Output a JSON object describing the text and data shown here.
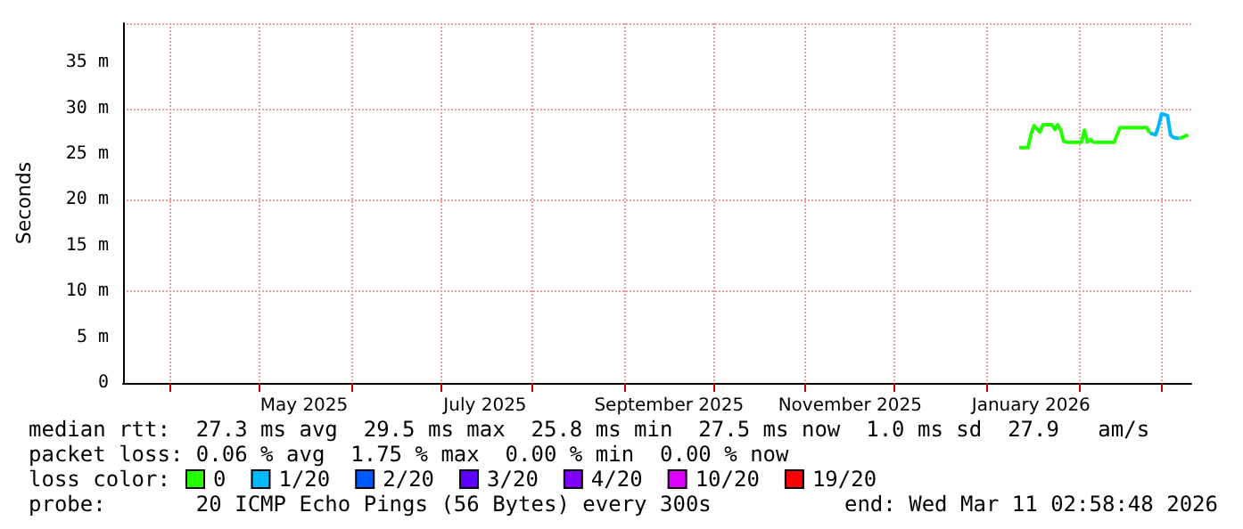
{
  "chart_data": {
    "type": "line",
    "ylabel": "Seconds",
    "legend_title": "loss color:",
    "legend": "bottom",
    "grid": true,
    "xlim": [
      "2025-03-16",
      "2026-03-11"
    ],
    "xticks": [
      {
        "value": "2025-04-01",
        "label": null
      },
      {
        "value": "2025-05-01",
        "label": null
      },
      {
        "value": "2025-05-16",
        "label": "May 2025"
      },
      {
        "value": "2025-06-01",
        "label": null
      },
      {
        "value": "2025-07-01",
        "label": null
      },
      {
        "value": "2025-07-16",
        "label": "July 2025"
      },
      {
        "value": "2025-08-01",
        "label": null
      },
      {
        "value": "2025-09-01",
        "label": null
      },
      {
        "value": "2025-09-16",
        "label": "September 2025"
      },
      {
        "value": "2025-10-01",
        "label": null
      },
      {
        "value": "2025-11-01",
        "label": null
      },
      {
        "value": "2025-11-16",
        "label": "November 2025"
      },
      {
        "value": "2025-12-01",
        "label": null
      },
      {
        "value": "2026-01-01",
        "label": null
      },
      {
        "value": "2026-01-16",
        "label": "January 2026"
      },
      {
        "value": "2026-02-01",
        "label": null
      },
      {
        "value": "2026-03-01",
        "label": null
      }
    ],
    "ylim": [
      0,
      39.3
    ],
    "yticks": [
      0,
      {
        "value": 5,
        "label": "5 m"
      },
      {
        "value": 10,
        "label": "10 m"
      },
      {
        "value": 15,
        "label": "15 m"
      },
      {
        "value": 20,
        "label": "20 m"
      },
      {
        "value": 25,
        "label": "25 m"
      },
      {
        "value": 30,
        "label": "30 m"
      },
      {
        "value": 35,
        "label": "35 m"
      }
    ],
    "x": [
      "2026-01-12",
      "2026-01-15",
      "2026-01-16",
      "2026-01-17",
      "2026-01-19",
      "2026-01-20",
      "2026-01-23",
      "2026-01-24",
      "2026-01-25",
      "2026-01-26",
      "2026-01-27",
      "2026-01-28",
      "2026-02-02",
      "2026-02-03",
      "2026-02-04",
      "2026-02-05",
      "2026-02-06",
      "2026-02-13",
      "2026-02-14",
      "2026-02-15",
      "2026-02-24",
      "2026-02-25",
      "2026-02-27",
      "2026-02-28",
      "2026-03-01",
      "2026-03-03",
      "2026-03-04",
      "2026-03-05",
      "2026-03-07",
      "2026-03-10"
    ],
    "series": [
      {
        "name": "0",
        "color": "#26ff00",
        "values": [
          25.7,
          25.7,
          27.2,
          28.1,
          27.4,
          28.2,
          28.2,
          27.7,
          28.2,
          27.6,
          26.4,
          26.3,
          26.3,
          27.6,
          26.3,
          26.6,
          26.3,
          26.3,
          27.1,
          27.9,
          27.9,
          27.3,
          null,
          null,
          null,
          null,
          null,
          null,
          26.7,
          27.1
        ]
      },
      {
        "name": "1/20",
        "color": "#00b8ff",
        "values": [
          null,
          null,
          null,
          null,
          null,
          null,
          null,
          null,
          null,
          null,
          null,
          null,
          null,
          null,
          null,
          null,
          null,
          null,
          null,
          null,
          null,
          27.3,
          27.1,
          28.1,
          29.4,
          29.2,
          27.1,
          26.8,
          26.7,
          null
        ]
      },
      {
        "name": "2/20",
        "color": "#0059ff",
        "values": [
          null,
          null,
          null,
          null,
          null,
          null,
          null,
          null,
          null,
          null,
          null,
          null,
          null,
          null,
          null,
          null,
          null,
          null,
          null,
          null,
          null,
          null,
          null,
          null,
          null,
          null,
          null,
          null,
          null,
          null
        ]
      },
      {
        "name": "3/20",
        "color": "#5e00ff",
        "values": [
          null,
          null,
          null,
          null,
          null,
          null,
          null,
          null,
          null,
          null,
          null,
          null,
          null,
          null,
          null,
          null,
          null,
          null,
          null,
          null,
          null,
          null,
          null,
          null,
          null,
          null,
          null,
          null,
          null,
          null
        ]
      },
      {
        "name": "4/20",
        "color": "#7e00ff",
        "values": [
          null,
          null,
          null,
          null,
          null,
          null,
          null,
          null,
          null,
          null,
          null,
          null,
          null,
          null,
          null,
          null,
          null,
          null,
          null,
          null,
          null,
          null,
          null,
          null,
          null,
          null,
          null,
          null,
          null,
          null
        ]
      },
      {
        "name": "10/20",
        "color": "#dd00ff",
        "values": [
          null,
          null,
          null,
          null,
          null,
          null,
          null,
          null,
          null,
          null,
          null,
          null,
          null,
          null,
          null,
          null,
          null,
          null,
          null,
          null,
          null,
          null,
          null,
          null,
          null,
          null,
          null,
          null,
          null,
          null
        ]
      },
      {
        "name": "19/20",
        "color": "#ff0000",
        "values": [
          null,
          null,
          null,
          null,
          null,
          null,
          null,
          null,
          null,
          null,
          null,
          null,
          null,
          null,
          null,
          null,
          null,
          null,
          null,
          null,
          null,
          null,
          null,
          null,
          null,
          null,
          null,
          null,
          null,
          null
        ]
      }
    ],
    "annotations": [
      "median rtt:  27.3 ms avg  29.5 ms max  25.8 ms min  27.5 ms now  1.0 ms sd  27.9   am/s",
      "packet loss: 0.06 % avg  1.75 % max  0.00 % min  0.00 % now",
      "probe:       20 ICMP Echo Pings (56 Bytes) every 300s",
      "end: Wed Mar 11 02:58:48 2026"
    ]
  }
}
